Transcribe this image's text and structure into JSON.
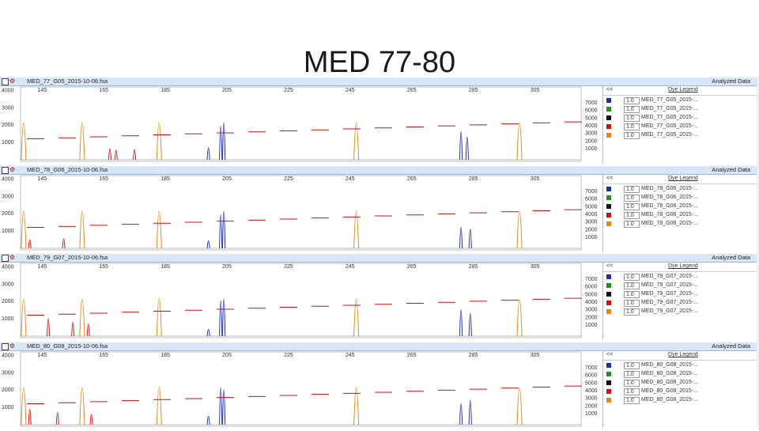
{
  "slide": {
    "title": "MED 77-80"
  },
  "chart_data": {
    "type": "line",
    "subtype": "electropherogram",
    "x_ticks": [
      "145",
      "165",
      "185",
      "205",
      "225",
      "245",
      "265",
      "285",
      "305"
    ],
    "left_y_ticks": [
      "4000",
      "3000",
      "2000",
      "1000"
    ],
    "right_y_ticks": [
      "7000",
      "6000",
      "5000",
      "4000",
      "3000",
      "2000",
      "1000"
    ],
    "dye_colors": {
      "blue": "#1f2fa0",
      "green": "#2a8a2a",
      "black": "#111111",
      "red": "#d01010",
      "orange": "#e08a1a"
    },
    "panels": [
      {
        "file": "MED_77_G05_2015-10-06.fsa",
        "analyzed_label": "Analyzed Data",
        "legend_title": "Dye Legend",
        "legend_rows": [
          {
            "color": "blue",
            "value": "1.0",
            "name": "MED_77_G05_2015-..."
          },
          {
            "color": "green",
            "value": "1.0",
            "name": "MED_77_G05_2015-..."
          },
          {
            "color": "black",
            "value": "1.0",
            "name": "MED_77_G05_2015-..."
          },
          {
            "color": "red",
            "value": "1.0",
            "name": "MED_77_G05_2015-..."
          },
          {
            "color": "orange",
            "value": "1.0",
            "name": "MED_77_G05_2015-..."
          }
        ],
        "orange_peaks": [
          139,
          158,
          183,
          247,
          300
        ],
        "blue_peaks": [
          {
            "x": 203,
            "h": 0.85
          },
          {
            "x": 204,
            "h": 0.95
          },
          {
            "x": 199,
            "h": 0.25
          },
          {
            "x": 281,
            "h": 0.7
          },
          {
            "x": 283,
            "h": 0.55
          }
        ],
        "red_peaks": [
          {
            "x": 167,
            "h": 0.22
          },
          {
            "x": 169,
            "h": 0.18
          },
          {
            "x": 175,
            "h": 0.2
          }
        ],
        "sizing_line": [
          1300,
          1600,
          1950,
          2350
        ]
      },
      {
        "file": "MED_78_G06_2015-10-06.fsa",
        "analyzed_label": "Analyzed Data",
        "legend_title": "Dye Legend",
        "legend_rows": [
          {
            "color": "blue",
            "value": "1.0",
            "name": "MED_78_G06_2015-..."
          },
          {
            "color": "green",
            "value": "1.0",
            "name": "MED_78_G06_2015-..."
          },
          {
            "color": "black",
            "value": "1.0",
            "name": "MED_78_G06_2015-..."
          },
          {
            "color": "red",
            "value": "1.0",
            "name": "MED_78_G06_2015-..."
          },
          {
            "color": "orange",
            "value": "1.0",
            "name": "MED_78_G06_2015-..."
          }
        ],
        "orange_peaks": [
          139,
          158,
          183,
          247,
          300
        ],
        "blue_peaks": [
          {
            "x": 203,
            "h": 0.85
          },
          {
            "x": 204,
            "h": 0.95
          },
          {
            "x": 199,
            "h": 0.12
          },
          {
            "x": 281,
            "h": 0.5
          },
          {
            "x": 284,
            "h": 0.45
          }
        ],
        "red_peaks": [
          {
            "x": 141,
            "h": 0.15
          },
          {
            "x": 152,
            "h": 0.18
          }
        ],
        "sizing_line": [
          1300,
          1700,
          2000,
          2400
        ]
      },
      {
        "file": "MED_79_G07_2015-10-06.fsa",
        "analyzed_label": "Analyzed Data",
        "legend_title": "Dye Legend",
        "legend_rows": [
          {
            "color": "blue",
            "value": "1.0",
            "name": "MED_79_G07_2015-..."
          },
          {
            "color": "green",
            "value": "1.0",
            "name": "MED_79_G07_2015-..."
          },
          {
            "color": "black",
            "value": "1.0",
            "name": "MED_79_G07_2015-..."
          },
          {
            "color": "red",
            "value": "1.0",
            "name": "MED_79_G07_2015-..."
          },
          {
            "color": "orange",
            "value": "1.0",
            "name": "MED_79_G07_2015-..."
          }
        ],
        "orange_peaks": [
          139,
          158,
          183,
          247,
          300
        ],
        "blue_peaks": [
          {
            "x": 203,
            "h": 0.9
          },
          {
            "x": 204,
            "h": 0.95
          },
          {
            "x": 199,
            "h": 0.1
          },
          {
            "x": 281,
            "h": 0.65
          },
          {
            "x": 284,
            "h": 0.55
          }
        ],
        "red_peaks": [
          {
            "x": 147,
            "h": 0.4
          },
          {
            "x": 155,
            "h": 0.3
          },
          {
            "x": 160,
            "h": 0.25
          }
        ],
        "sizing_line": [
          1300,
          1650,
          2000,
          2350
        ]
      },
      {
        "file": "MED_80_G08_2015-10-06.fsa",
        "analyzed_label": "Analyzed Data",
        "legend_title": "Dye Legend",
        "legend_rows": [
          {
            "color": "blue",
            "value": "1.0",
            "name": "MED_80_G08_2015-..."
          },
          {
            "color": "green",
            "value": "1.0",
            "name": "MED_80_G08_2015-..."
          },
          {
            "color": "black",
            "value": "1.0",
            "name": "MED_80_G08_2015-..."
          },
          {
            "color": "red",
            "value": "1.0",
            "name": "MED_80_G08_2015-..."
          },
          {
            "color": "orange",
            "value": "1.0",
            "name": "MED_80_G08_2015-..."
          }
        ],
        "orange_peaks": [
          139,
          158,
          183,
          247,
          300
        ],
        "blue_peaks": [
          {
            "x": 203,
            "h": 0.95
          },
          {
            "x": 204,
            "h": 0.9
          },
          {
            "x": 199,
            "h": 0.15
          },
          {
            "x": 281,
            "h": 0.5
          },
          {
            "x": 284,
            "h": 0.6
          }
        ],
        "red_peaks": [
          {
            "x": 141,
            "h": 0.35
          },
          {
            "x": 150,
            "h": 0.25
          },
          {
            "x": 161,
            "h": 0.2
          }
        ],
        "sizing_line": [
          1300,
          1700,
          2050,
          2400
        ]
      }
    ]
  }
}
